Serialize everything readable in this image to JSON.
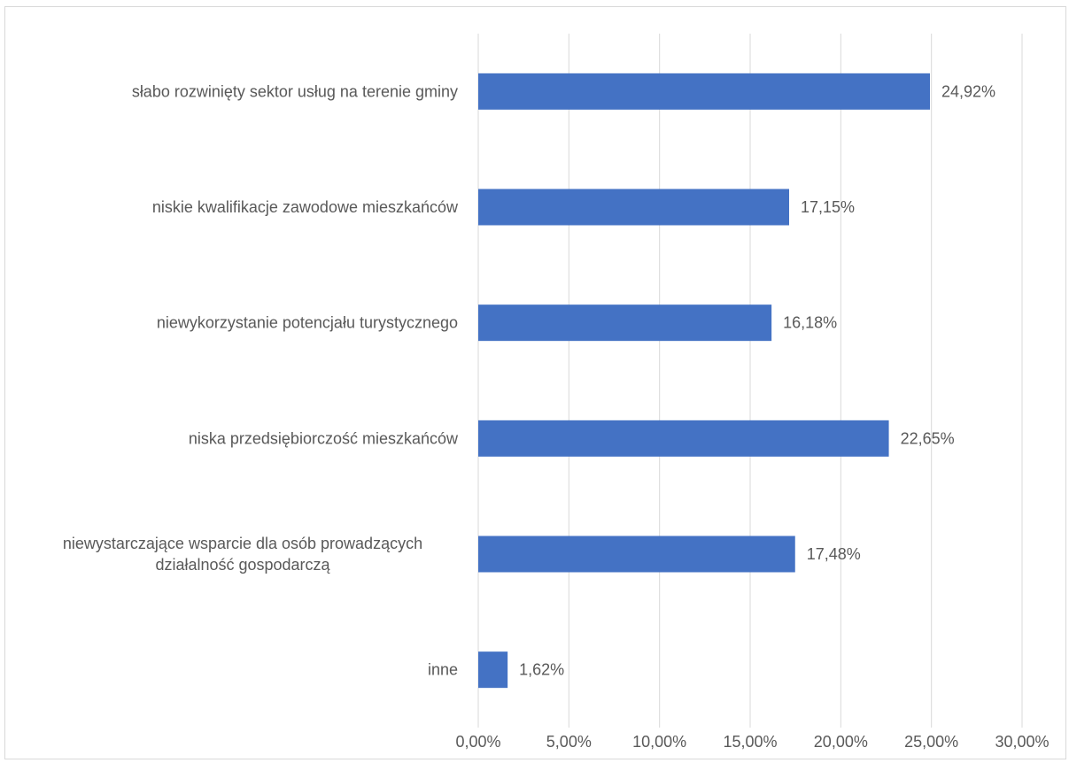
{
  "chart_data": {
    "type": "bar",
    "orientation": "horizontal",
    "categories": [
      "słabo rozwinięty sektor usług na terenie gminy",
      "niskie kwalifikacje zawodowe mieszkańców",
      "niewykorzystanie potencjału turystycznego",
      "niska przedsiębiorczość mieszkańców",
      "niewystarczające wsparcie dla osób prowadzących działalność gospodarczą",
      "inne"
    ],
    "category_lines": [
      [
        "słabo rozwinięty sektor usług na terenie gminy"
      ],
      [
        "niskie kwalifikacje zawodowe mieszkańców"
      ],
      [
        "niewykorzystanie potencjału turystycznego"
      ],
      [
        "niska przedsiębiorczość mieszkańców"
      ],
      [
        "niewystarczające wsparcie dla osób prowadzących",
        "działalność gospodarczą"
      ],
      [
        "inne"
      ]
    ],
    "values": [
      24.92,
      17.15,
      16.18,
      22.65,
      17.48,
      1.62
    ],
    "data_labels": [
      "24,92%",
      "17,15%",
      "16,18%",
      "22,65%",
      "17,48%",
      "1,62%"
    ],
    "xlim": [
      0,
      30
    ],
    "x_ticks": [
      0,
      5,
      10,
      15,
      20,
      25,
      30
    ],
    "x_tick_labels": [
      "0,00%",
      "5,00%",
      "10,00%",
      "15,00%",
      "20,00%",
      "25,00%",
      "30,00%"
    ],
    "grid": "vertical",
    "bar_color": "#4472c4",
    "grid_color": "#d9d9d9",
    "text_color": "#595959",
    "legend": "none"
  }
}
